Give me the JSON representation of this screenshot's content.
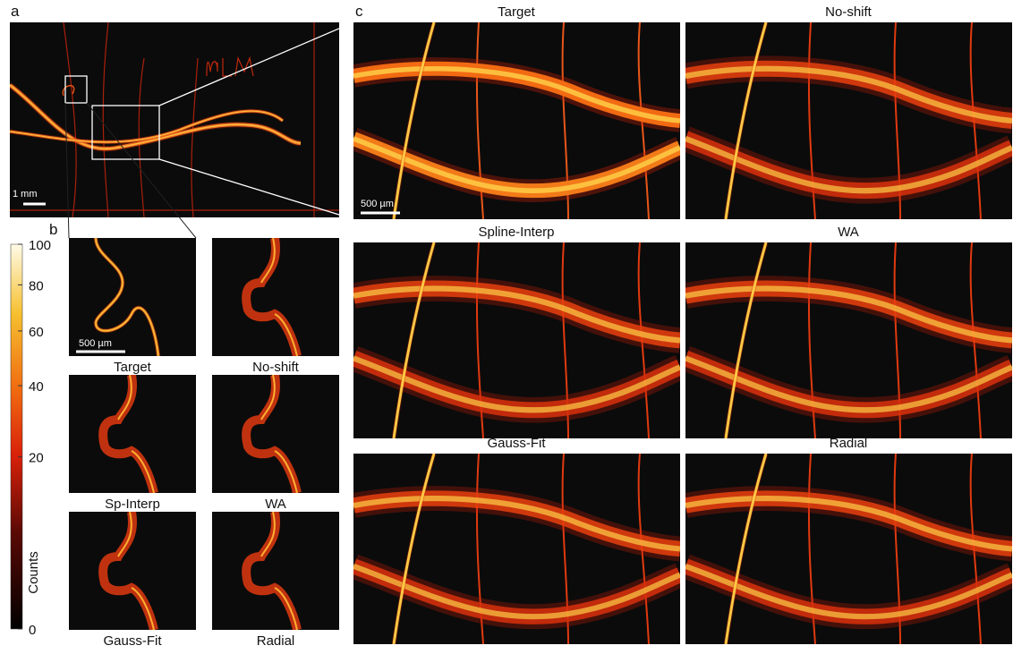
{
  "panel_a": {
    "label": "a",
    "scale_bar": "1 mm"
  },
  "panel_b": {
    "label": "b",
    "scale_bar": "500 µm",
    "panels": [
      "Target",
      "No-shift",
      "Sp-Interp",
      "WA",
      "Gauss-Fit",
      "Radial"
    ]
  },
  "panel_c": {
    "label": "c",
    "scale_bar": "500 µm",
    "panels": [
      "Target",
      "No-shift",
      "Spline-Interp",
      "WA",
      "Gauss-Fit",
      "Radial"
    ]
  },
  "colorbar": {
    "label": "Counts",
    "scale": "sqrt",
    "lim": [
      0,
      100
    ],
    "ticks": [
      0,
      20,
      40,
      60,
      80,
      100
    ]
  }
}
